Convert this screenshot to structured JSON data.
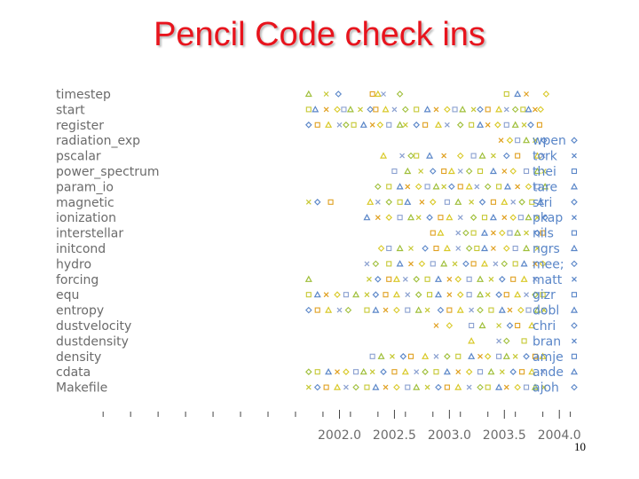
{
  "slide": {
    "title": "Pencil Code check ins",
    "page_number": "10"
  },
  "chart_data": {
    "type": "scatter",
    "title": "Pencil Code check ins",
    "xlabel": "",
    "ylabel": "",
    "xlim": [
      1999.8,
      2004.2
    ],
    "x_ticks": [
      2002.0,
      2002.5,
      2003.0,
      2003.5,
      2004.0
    ],
    "x_tick_labels": [
      "2002.0",
      "2002.5",
      "2003.0",
      "2003.5",
      "2004.0"
    ],
    "categories": [
      "timestep",
      "start",
      "register",
      "radiation_exp",
      "pscalar",
      "power_spectrum",
      "param_io",
      "magnetic",
      "ionization",
      "interstellar",
      "initcond",
      "hydro",
      "forcing",
      "equ",
      "entropy",
      "dustvelocity",
      "dustdensity",
      "density",
      "cdata",
      "Makefile"
    ],
    "legend": {
      "placement": "right",
      "entries": [
        {
          "name": "wpen",
          "marker": "diamond",
          "color": "#5a86c8"
        },
        {
          "name": "tork",
          "marker": "cross",
          "color": "#5a86c8"
        },
        {
          "name": "theine",
          "marker": "square",
          "color": "#5a86c8"
        },
        {
          "name": "tarek",
          "marker": "triangle",
          "color": "#5a86c8"
        },
        {
          "name": "stric",
          "marker": "diamond",
          "color": "#5a86c8"
        },
        {
          "name": "pkapyla",
          "marker": "cross",
          "color": "#5a86c8"
        },
        {
          "name": "nils",
          "marker": "square",
          "color": "#5a86c8"
        },
        {
          "name": "ngrs",
          "marker": "triangle",
          "color": "#5a86c8"
        },
        {
          "name": "mee;",
          "marker": "diamond",
          "color": "#5a86c8"
        },
        {
          "name": "mattias",
          "marker": "cross",
          "color": "#5a86c8"
        },
        {
          "name": "gizmo",
          "marker": "square",
          "color": "#5a86c8"
        },
        {
          "name": "dobler",
          "marker": "triangle",
          "color": "#5a86c8"
        },
        {
          "name": "chris",
          "marker": "diamond",
          "color": "#5a86c8"
        },
        {
          "name": "brandenb",
          "marker": "cross",
          "color": "#5a86c8"
        },
        {
          "name": "amjed",
          "marker": "square",
          "color": "#5a86c8"
        },
        {
          "name": "anders",
          "marker": "triangle",
          "color": "#5a86c8"
        },
        {
          "name": "ajohan",
          "marker": "diamond",
          "color": "#5a86c8"
        }
      ],
      "visible_labels": [
        "wpen",
        "tork",
        "thei",
        "tare",
        "stri",
        "pkap",
        "nils",
        "ngrs",
        "mee;",
        "matt",
        "gizr",
        "dobl",
        "chri",
        "bran",
        "amje",
        "ande",
        "ajoh"
      ]
    },
    "colors": [
      "#9fbf3a",
      "#c6c833",
      "#5a86c8",
      "#e0a020",
      "#d9c928",
      "#8aa0d0"
    ],
    "series": [
      {
        "category": "timestep",
        "x": [
          2001.72,
          2001.88,
          2001.99,
          2002.3,
          2002.35,
          2002.4,
          2002.55,
          2003.52,
          2003.62,
          2003.7,
          2003.88
        ]
      },
      {
        "category": "start",
        "x": [
          2001.72,
          2001.78,
          2001.88,
          2001.98,
          2002.04,
          2002.1,
          2002.19,
          2002.28,
          2002.33,
          2002.42,
          2002.5,
          2002.6,
          2002.7,
          2002.8,
          2002.88,
          2002.98,
          2003.05,
          2003.12,
          2003.22,
          2003.28,
          2003.35,
          2003.45,
          2003.52,
          2003.6,
          2003.67,
          2003.72,
          2003.78,
          2003.83
        ]
      },
      {
        "category": "register",
        "x": [
          2001.72,
          2001.8,
          2001.9,
          2002.0,
          2002.06,
          2002.13,
          2002.22,
          2002.3,
          2002.37,
          2002.45,
          2002.55,
          2002.6,
          2002.7,
          2002.78,
          2002.9,
          2002.98,
          2003.1,
          2003.2,
          2003.28,
          2003.35,
          2003.44,
          2003.52,
          2003.6,
          2003.68,
          2003.74,
          2003.82
        ]
      },
      {
        "category": "radiation_exp",
        "x": [
          2003.47,
          2003.55,
          2003.62,
          2003.7,
          2003.78,
          2003.86
        ]
      },
      {
        "category": "pscalar",
        "x": [
          2002.4,
          2002.57,
          2002.65,
          2002.7,
          2002.82,
          2002.95,
          2003.1,
          2003.22,
          2003.3,
          2003.4,
          2003.52,
          2003.62,
          2003.8,
          2003.85
        ]
      },
      {
        "category": "power_spectrum",
        "x": [
          2002.5,
          2002.62,
          2002.74,
          2002.85,
          2002.95,
          2003.02,
          2003.1,
          2003.18,
          2003.28,
          2003.4,
          2003.5,
          2003.58,
          2003.7,
          2003.8,
          2003.86
        ]
      },
      {
        "category": "param_io",
        "x": [
          2002.35,
          2002.45,
          2002.55,
          2002.62,
          2002.72,
          2002.8,
          2002.88,
          2002.95,
          2003.02,
          2003.1,
          2003.18,
          2003.25,
          2003.35,
          2003.45,
          2003.53,
          2003.62,
          2003.72,
          2003.8,
          2003.87
        ]
      },
      {
        "category": "magnetic",
        "x": [
          2001.72,
          2001.8,
          2001.92,
          2002.28,
          2002.35,
          2002.45,
          2002.55,
          2002.62,
          2002.75,
          2002.85,
          2002.98,
          2003.08,
          2003.2,
          2003.3,
          2003.4,
          2003.5,
          2003.58,
          2003.66,
          2003.75,
          2003.83
        ]
      },
      {
        "category": "ionization",
        "x": [
          2002.25,
          2002.35,
          2002.45,
          2002.55,
          2002.65,
          2002.72,
          2002.82,
          2002.92,
          2003.0,
          2003.1,
          2003.22,
          2003.32,
          2003.4,
          2003.5,
          2003.58,
          2003.65,
          2003.72,
          2003.8,
          2003.87
        ]
      },
      {
        "category": "interstellar",
        "x": [
          2002.85,
          2002.92,
          2003.08,
          2003.15,
          2003.22,
          2003.32,
          2003.4,
          2003.48,
          2003.55,
          2003.62,
          2003.7,
          2003.8,
          2003.85
        ]
      },
      {
        "category": "initcond",
        "x": [
          2002.38,
          2002.45,
          2002.55,
          2002.65,
          2002.78,
          2002.88,
          2002.98,
          2003.08,
          2003.18,
          2003.25,
          2003.32,
          2003.4,
          2003.52,
          2003.6,
          2003.7,
          2003.8
        ]
      },
      {
        "category": "hydro",
        "x": [
          2002.25,
          2002.33,
          2002.45,
          2002.55,
          2002.65,
          2002.75,
          2002.85,
          2002.95,
          2003.05,
          2003.15,
          2003.22,
          2003.32,
          2003.42,
          2003.5,
          2003.6,
          2003.68,
          2003.78,
          2003.85
        ]
      },
      {
        "category": "forcing",
        "x": [
          2001.72,
          2002.27,
          2002.35,
          2002.45,
          2002.52,
          2002.6,
          2002.7,
          2002.8,
          2002.9,
          2003.0,
          2003.08,
          2003.18,
          2003.28,
          2003.38,
          2003.48,
          2003.58,
          2003.68,
          2003.78
        ]
      },
      {
        "category": "equ",
        "x": [
          2001.72,
          2001.8,
          2001.88,
          2001.98,
          2002.06,
          2002.15,
          2002.25,
          2002.33,
          2002.42,
          2002.52,
          2002.62,
          2002.72,
          2002.82,
          2002.9,
          2003.0,
          2003.1,
          2003.18,
          2003.28,
          2003.35,
          2003.45,
          2003.52,
          2003.62,
          2003.7,
          2003.78,
          2003.85
        ]
      },
      {
        "category": "entropy",
        "x": [
          2001.72,
          2001.8,
          2001.9,
          2002.0,
          2002.08,
          2002.25,
          2002.33,
          2002.42,
          2002.52,
          2002.62,
          2002.72,
          2002.8,
          2002.92,
          2003.0,
          2003.1,
          2003.2,
          2003.28,
          2003.38,
          2003.48,
          2003.55,
          2003.65,
          2003.72,
          2003.8,
          2003.86
        ]
      },
      {
        "category": "dustvelocity",
        "x": [
          2002.88,
          2003.0,
          2003.2,
          2003.3,
          2003.45,
          2003.55,
          2003.62,
          2003.75
        ]
      },
      {
        "category": "dustdensity",
        "x": [
          2003.2,
          2003.45,
          2003.52,
          2003.68
        ]
      },
      {
        "category": "density",
        "x": [
          2002.3,
          2002.38,
          2002.48,
          2002.58,
          2002.65,
          2002.78,
          2002.88,
          2002.98,
          2003.08,
          2003.2,
          2003.28,
          2003.35,
          2003.45,
          2003.52,
          2003.6,
          2003.7,
          2003.78,
          2003.85
        ]
      },
      {
        "category": "cdata",
        "x": [
          2001.72,
          2001.8,
          2001.9,
          2001.98,
          2002.06,
          2002.15,
          2002.22,
          2002.3,
          2002.4,
          2002.5,
          2002.6,
          2002.7,
          2002.78,
          2002.88,
          2002.98,
          2003.08,
          2003.18,
          2003.28,
          2003.38,
          2003.48,
          2003.58,
          2003.66,
          2003.75,
          2003.85
        ]
      },
      {
        "category": "Makefile",
        "x": [
          2001.72,
          2001.8,
          2001.88,
          2001.98,
          2002.06,
          2002.15,
          2002.25,
          2002.33,
          2002.42,
          2002.52,
          2002.62,
          2002.7,
          2002.8,
          2002.9,
          2002.98,
          2003.08,
          2003.18,
          2003.28,
          2003.35,
          2003.45,
          2003.52,
          2003.62,
          2003.7,
          2003.78,
          2003.86
        ]
      }
    ]
  }
}
